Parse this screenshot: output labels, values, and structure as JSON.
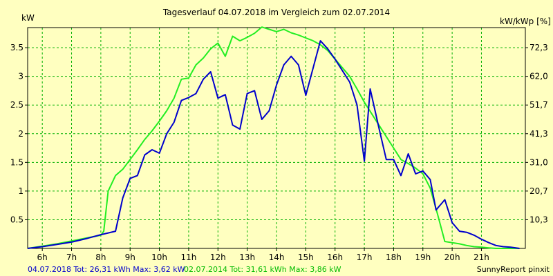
{
  "chart_data": {
    "type": "line",
    "title": "Tagesverlauf 04.07.2018 im Vergleich zum 02.07.2014",
    "ylabel_left": "kW",
    "ylabel_right": "kW/kWp [%]",
    "xlim": [
      5.5,
      22.5
    ],
    "ylim": [
      0,
      3.85
    ],
    "x_ticks": [
      {
        "x": 6,
        "label": "6h"
      },
      {
        "x": 7,
        "label": "7h"
      },
      {
        "x": 8,
        "label": "8h"
      },
      {
        "x": 9,
        "label": "9h"
      },
      {
        "x": 10,
        "label": "10h"
      },
      {
        "x": 11,
        "label": "11h"
      },
      {
        "x": 12,
        "label": "12h"
      },
      {
        "x": 13,
        "label": "13h"
      },
      {
        "x": 14,
        "label": "14h"
      },
      {
        "x": 15,
        "label": "15h"
      },
      {
        "x": 16,
        "label": "16h"
      },
      {
        "x": 17,
        "label": "17h"
      },
      {
        "x": 18,
        "label": "18h"
      },
      {
        "x": 19,
        "label": "19h"
      },
      {
        "x": 20,
        "label": "20h"
      },
      {
        "x": 21,
        "label": "21h"
      }
    ],
    "y_ticks_left": [
      {
        "y": 0.5,
        "label": "0.5"
      },
      {
        "y": 1,
        "label": "1"
      },
      {
        "y": 1.5,
        "label": "1.5"
      },
      {
        "y": 2,
        "label": "2"
      },
      {
        "y": 2.5,
        "label": "2.5"
      },
      {
        "y": 3,
        "label": "3"
      },
      {
        "y": 3.5,
        "label": "3.5"
      }
    ],
    "y_ticks_right": [
      {
        "y": 0.5,
        "label": "10,3"
      },
      {
        "y": 1,
        "label": "20,7"
      },
      {
        "y": 1.5,
        "label": "31,0"
      },
      {
        "y": 2,
        "label": "41,3"
      },
      {
        "y": 2.5,
        "label": "51,7"
      },
      {
        "y": 3,
        "label": "62,0"
      },
      {
        "y": 3.5,
        "label": "72,3"
      }
    ],
    "grid": true,
    "series": [
      {
        "name": "04.07.2018",
        "color": "#0000cc",
        "points": [
          [
            5.5,
            0
          ],
          [
            6,
            0.03
          ],
          [
            6.5,
            0.07
          ],
          [
            7,
            0.11
          ],
          [
            7.5,
            0.17
          ],
          [
            8,
            0.24
          ],
          [
            8.25,
            0.27
          ],
          [
            8.5,
            0.3
          ],
          [
            8.75,
            0.88
          ],
          [
            9,
            1.22
          ],
          [
            9.25,
            1.27
          ],
          [
            9.5,
            1.63
          ],
          [
            9.75,
            1.72
          ],
          [
            10,
            1.66
          ],
          [
            10.25,
            2
          ],
          [
            10.5,
            2.2
          ],
          [
            10.75,
            2.58
          ],
          [
            11,
            2.63
          ],
          [
            11.25,
            2.7
          ],
          [
            11.5,
            2.95
          ],
          [
            11.75,
            3.08
          ],
          [
            12,
            2.62
          ],
          [
            12.25,
            2.68
          ],
          [
            12.5,
            2.15
          ],
          [
            12.75,
            2.08
          ],
          [
            13,
            2.7
          ],
          [
            13.25,
            2.75
          ],
          [
            13.5,
            2.25
          ],
          [
            13.75,
            2.4
          ],
          [
            14,
            2.85
          ],
          [
            14.25,
            3.2
          ],
          [
            14.5,
            3.35
          ],
          [
            14.75,
            3.2
          ],
          [
            15,
            2.67
          ],
          [
            15.5,
            3.62
          ],
          [
            15.75,
            3.48
          ],
          [
            16,
            3.3
          ],
          [
            16.25,
            3.1
          ],
          [
            16.5,
            2.9
          ],
          [
            16.75,
            2.5
          ],
          [
            17,
            1.52
          ],
          [
            17.2,
            2.78
          ],
          [
            17.5,
            2.1
          ],
          [
            17.75,
            1.55
          ],
          [
            18,
            1.55
          ],
          [
            18.25,
            1.27
          ],
          [
            18.5,
            1.65
          ],
          [
            18.75,
            1.3
          ],
          [
            19,
            1.35
          ],
          [
            19.25,
            1.2
          ],
          [
            19.45,
            0.67
          ],
          [
            19.75,
            0.85
          ],
          [
            20,
            0.45
          ],
          [
            20.25,
            0.3
          ],
          [
            20.5,
            0.28
          ],
          [
            20.75,
            0.23
          ],
          [
            21,
            0.16
          ],
          [
            21.25,
            0.1
          ],
          [
            21.5,
            0.05
          ],
          [
            21.75,
            0.03
          ],
          [
            22,
            0.02
          ],
          [
            22.3,
            0
          ]
        ]
      },
      {
        "name": "02.07.2014",
        "color": "#22ee22",
        "points": [
          [
            5.5,
            0
          ],
          [
            6,
            0.04
          ],
          [
            6.5,
            0.08
          ],
          [
            7,
            0.13
          ],
          [
            7.5,
            0.18
          ],
          [
            8,
            0.23
          ],
          [
            8.1,
            0.3
          ],
          [
            8.25,
            1
          ],
          [
            8.5,
            1.27
          ],
          [
            8.75,
            1.38
          ],
          [
            9,
            1.55
          ],
          [
            9.25,
            1.72
          ],
          [
            9.5,
            1.9
          ],
          [
            9.75,
            2.05
          ],
          [
            10,
            2.22
          ],
          [
            10.25,
            2.4
          ],
          [
            10.5,
            2.62
          ],
          [
            10.75,
            2.95
          ],
          [
            11,
            2.97
          ],
          [
            11.25,
            3.2
          ],
          [
            11.5,
            3.32
          ],
          [
            11.75,
            3.48
          ],
          [
            12,
            3.58
          ],
          [
            12.25,
            3.35
          ],
          [
            12.5,
            3.7
          ],
          [
            12.75,
            3.62
          ],
          [
            13,
            3.68
          ],
          [
            13.25,
            3.75
          ],
          [
            13.5,
            3.86
          ],
          [
            13.75,
            3.82
          ],
          [
            14,
            3.78
          ],
          [
            14.25,
            3.82
          ],
          [
            14.5,
            3.76
          ],
          [
            14.75,
            3.72
          ],
          [
            15,
            3.67
          ],
          [
            15.25,
            3.62
          ],
          [
            15.5,
            3.55
          ],
          [
            15.75,
            3.45
          ],
          [
            16,
            3.3
          ],
          [
            16.25,
            3.15
          ],
          [
            16.5,
            3
          ],
          [
            16.75,
            2.78
          ],
          [
            17,
            2.55
          ],
          [
            17.25,
            2.35
          ],
          [
            17.5,
            2.15
          ],
          [
            17.75,
            1.95
          ],
          [
            18,
            1.75
          ],
          [
            18.25,
            1.55
          ],
          [
            18.5,
            1.48
          ],
          [
            18.75,
            1.4
          ],
          [
            19,
            1.3
          ],
          [
            19.25,
            1.05
          ],
          [
            19.5,
            0.6
          ],
          [
            19.75,
            0.12
          ],
          [
            20,
            0.1
          ],
          [
            20.25,
            0.08
          ],
          [
            20.5,
            0.05
          ],
          [
            20.75,
            0.03
          ],
          [
            21,
            0.02
          ],
          [
            21.25,
            0.01
          ],
          [
            21.5,
            0
          ],
          [
            22.3,
            0
          ]
        ]
      }
    ]
  },
  "footer": {
    "stats_2018": "04.07.2018 Tot: 26,31 kWh Max: 3,62 kW",
    "stats_2014": "02.07.2014 Tot: 31,61 kWh Max: 3,86 kW",
    "credit": "SunnyReport pinxit"
  }
}
